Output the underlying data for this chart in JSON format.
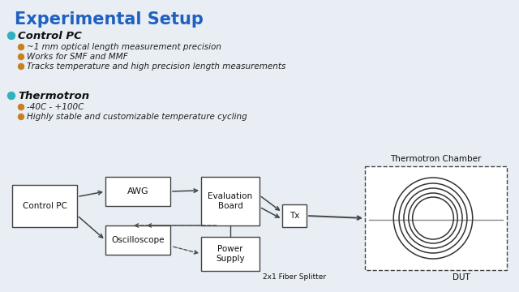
{
  "title": "Experimental Setup",
  "title_color": "#2060C0",
  "title_fontsize": 15,
  "bg_color": "#E8EEF4",
  "section1_header": "Control PC",
  "section1_bullets": [
    "~1 mm optical length measurement precision",
    "Works for SMF and MMF",
    "Tracks temperature and high precision length measurements"
  ],
  "section2_header": "Thermotron",
  "section2_bullets": [
    "-40C - +100C",
    "Highly stable and customizable temperature cycling"
  ],
  "diagram_labels": {
    "control_pc": "Control PC",
    "awg": "AWG",
    "eval_board": "Evaluation\nBoard",
    "oscilloscope": "Oscilloscope",
    "power_supply": "Power\nSupply",
    "tx": "Tx",
    "fiber_splitter": "2x1 Fiber Splitter",
    "dut": "DUT",
    "thermo_chamber": "Thermotron Chamber"
  },
  "box_edge_color": "#444444",
  "text_color_dark": "#111111",
  "text_color_italic": "#222222",
  "bullet_color_teal": "#30B0C0",
  "bullet_color_orange": "#C88020",
  "header_bullet_color": "#30B0C0"
}
